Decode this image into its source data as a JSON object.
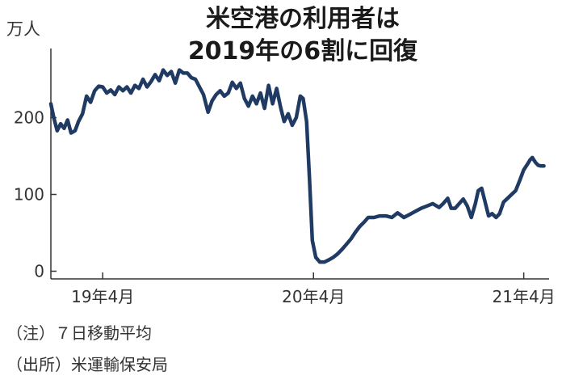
{
  "chart_data": {
    "type": "line",
    "title_lines": [
      "米空港の利用者は",
      "2019年の6割に回復"
    ],
    "unit_label": "万人",
    "x_axis": {
      "start": "2019-01-01",
      "end": "2021-05-15",
      "ticks": [
        {
          "date": "2019-04-01",
          "label": "19年4月"
        },
        {
          "date": "2020-04-01",
          "label": "20年4月"
        },
        {
          "date": "2021-04-01",
          "label": "21年4月"
        }
      ]
    },
    "y_axis": {
      "min": -10,
      "max": 290,
      "ticks": [
        0,
        100,
        200
      ]
    },
    "grid": false,
    "series": [
      {
        "color": "#1f3b63",
        "points": [
          [
            "2019-01-01",
            218
          ],
          [
            "2019-01-06",
            200
          ],
          [
            "2019-01-12",
            183
          ],
          [
            "2019-01-18",
            192
          ],
          [
            "2019-01-24",
            186
          ],
          [
            "2019-01-30",
            197
          ],
          [
            "2019-02-05",
            180
          ],
          [
            "2019-02-12",
            183
          ],
          [
            "2019-02-18",
            195
          ],
          [
            "2019-02-25",
            205
          ],
          [
            "2019-03-04",
            228
          ],
          [
            "2019-03-11",
            220
          ],
          [
            "2019-03-18",
            235
          ],
          [
            "2019-03-25",
            241
          ],
          [
            "2019-04-01",
            240
          ],
          [
            "2019-04-08",
            232
          ],
          [
            "2019-04-15",
            236
          ],
          [
            "2019-04-22",
            230
          ],
          [
            "2019-04-29",
            240
          ],
          [
            "2019-05-06",
            235
          ],
          [
            "2019-05-13",
            240
          ],
          [
            "2019-05-20",
            232
          ],
          [
            "2019-05-27",
            242
          ],
          [
            "2019-06-03",
            238
          ],
          [
            "2019-06-10",
            250
          ],
          [
            "2019-06-17",
            240
          ],
          [
            "2019-06-24",
            247
          ],
          [
            "2019-07-01",
            256
          ],
          [
            "2019-07-08",
            248
          ],
          [
            "2019-07-15",
            262
          ],
          [
            "2019-07-22",
            255
          ],
          [
            "2019-07-29",
            260
          ],
          [
            "2019-08-05",
            245
          ],
          [
            "2019-08-12",
            262
          ],
          [
            "2019-08-19",
            258
          ],
          [
            "2019-08-26",
            258
          ],
          [
            "2019-09-02",
            252
          ],
          [
            "2019-09-09",
            250
          ],
          [
            "2019-09-16",
            240
          ],
          [
            "2019-09-23",
            230
          ],
          [
            "2019-10-01",
            207
          ],
          [
            "2019-10-08",
            222
          ],
          [
            "2019-10-15",
            230
          ],
          [
            "2019-10-22",
            235
          ],
          [
            "2019-10-29",
            228
          ],
          [
            "2019-11-05",
            232
          ],
          [
            "2019-11-12",
            246
          ],
          [
            "2019-11-19",
            238
          ],
          [
            "2019-11-26",
            245
          ],
          [
            "2019-12-03",
            225
          ],
          [
            "2019-12-10",
            215
          ],
          [
            "2019-12-17",
            228
          ],
          [
            "2019-12-24",
            218
          ],
          [
            "2019-12-31",
            232
          ],
          [
            "2020-01-07",
            212
          ],
          [
            "2020-01-14",
            242
          ],
          [
            "2020-01-21",
            218
          ],
          [
            "2020-01-28",
            238
          ],
          [
            "2020-02-04",
            213
          ],
          [
            "2020-02-10",
            195
          ],
          [
            "2020-02-17",
            205
          ],
          [
            "2020-02-24",
            190
          ],
          [
            "2020-03-02",
            200
          ],
          [
            "2020-03-09",
            228
          ],
          [
            "2020-03-14",
            225
          ],
          [
            "2020-03-20",
            195
          ],
          [
            "2020-03-25",
            120
          ],
          [
            "2020-03-30",
            40
          ],
          [
            "2020-04-05",
            18
          ],
          [
            "2020-04-12",
            12
          ],
          [
            "2020-04-20",
            12
          ],
          [
            "2020-04-28",
            15
          ],
          [
            "2020-05-05",
            18
          ],
          [
            "2020-05-12",
            22
          ],
          [
            "2020-05-20",
            28
          ],
          [
            "2020-05-28",
            35
          ],
          [
            "2020-06-05",
            42
          ],
          [
            "2020-06-12",
            50
          ],
          [
            "2020-06-20",
            58
          ],
          [
            "2020-06-28",
            64
          ],
          [
            "2020-07-05",
            70
          ],
          [
            "2020-07-15",
            70
          ],
          [
            "2020-07-25",
            72
          ],
          [
            "2020-08-05",
            72
          ],
          [
            "2020-08-15",
            70
          ],
          [
            "2020-08-25",
            76
          ],
          [
            "2020-09-05",
            70
          ],
          [
            "2020-09-15",
            74
          ],
          [
            "2020-09-25",
            78
          ],
          [
            "2020-10-05",
            82
          ],
          [
            "2020-10-15",
            85
          ],
          [
            "2020-10-25",
            88
          ],
          [
            "2020-11-05",
            83
          ],
          [
            "2020-11-12",
            88
          ],
          [
            "2020-11-20",
            95
          ],
          [
            "2020-11-26",
            82
          ],
          [
            "2020-12-03",
            82
          ],
          [
            "2020-12-10",
            88
          ],
          [
            "2020-12-17",
            94
          ],
          [
            "2020-12-24",
            85
          ],
          [
            "2020-12-31",
            70
          ],
          [
            "2021-01-07",
            88
          ],
          [
            "2021-01-12",
            105
          ],
          [
            "2021-01-18",
            108
          ],
          [
            "2021-01-24",
            90
          ],
          [
            "2021-01-30",
            72
          ],
          [
            "2021-02-05",
            75
          ],
          [
            "2021-02-12",
            70
          ],
          [
            "2021-02-18",
            75
          ],
          [
            "2021-02-25",
            90
          ],
          [
            "2021-03-04",
            95
          ],
          [
            "2021-03-11",
            100
          ],
          [
            "2021-03-18",
            105
          ],
          [
            "2021-03-25",
            118
          ],
          [
            "2021-04-01",
            132
          ],
          [
            "2021-04-08",
            140
          ],
          [
            "2021-04-12",
            145
          ],
          [
            "2021-04-16",
            148
          ],
          [
            "2021-04-21",
            142
          ],
          [
            "2021-04-26",
            138
          ],
          [
            "2021-05-01",
            137
          ],
          [
            "2021-05-06",
            137
          ]
        ]
      }
    ]
  },
  "notes": [
    "（注）７日移動平均",
    "（出所）米運輸保安局"
  ]
}
